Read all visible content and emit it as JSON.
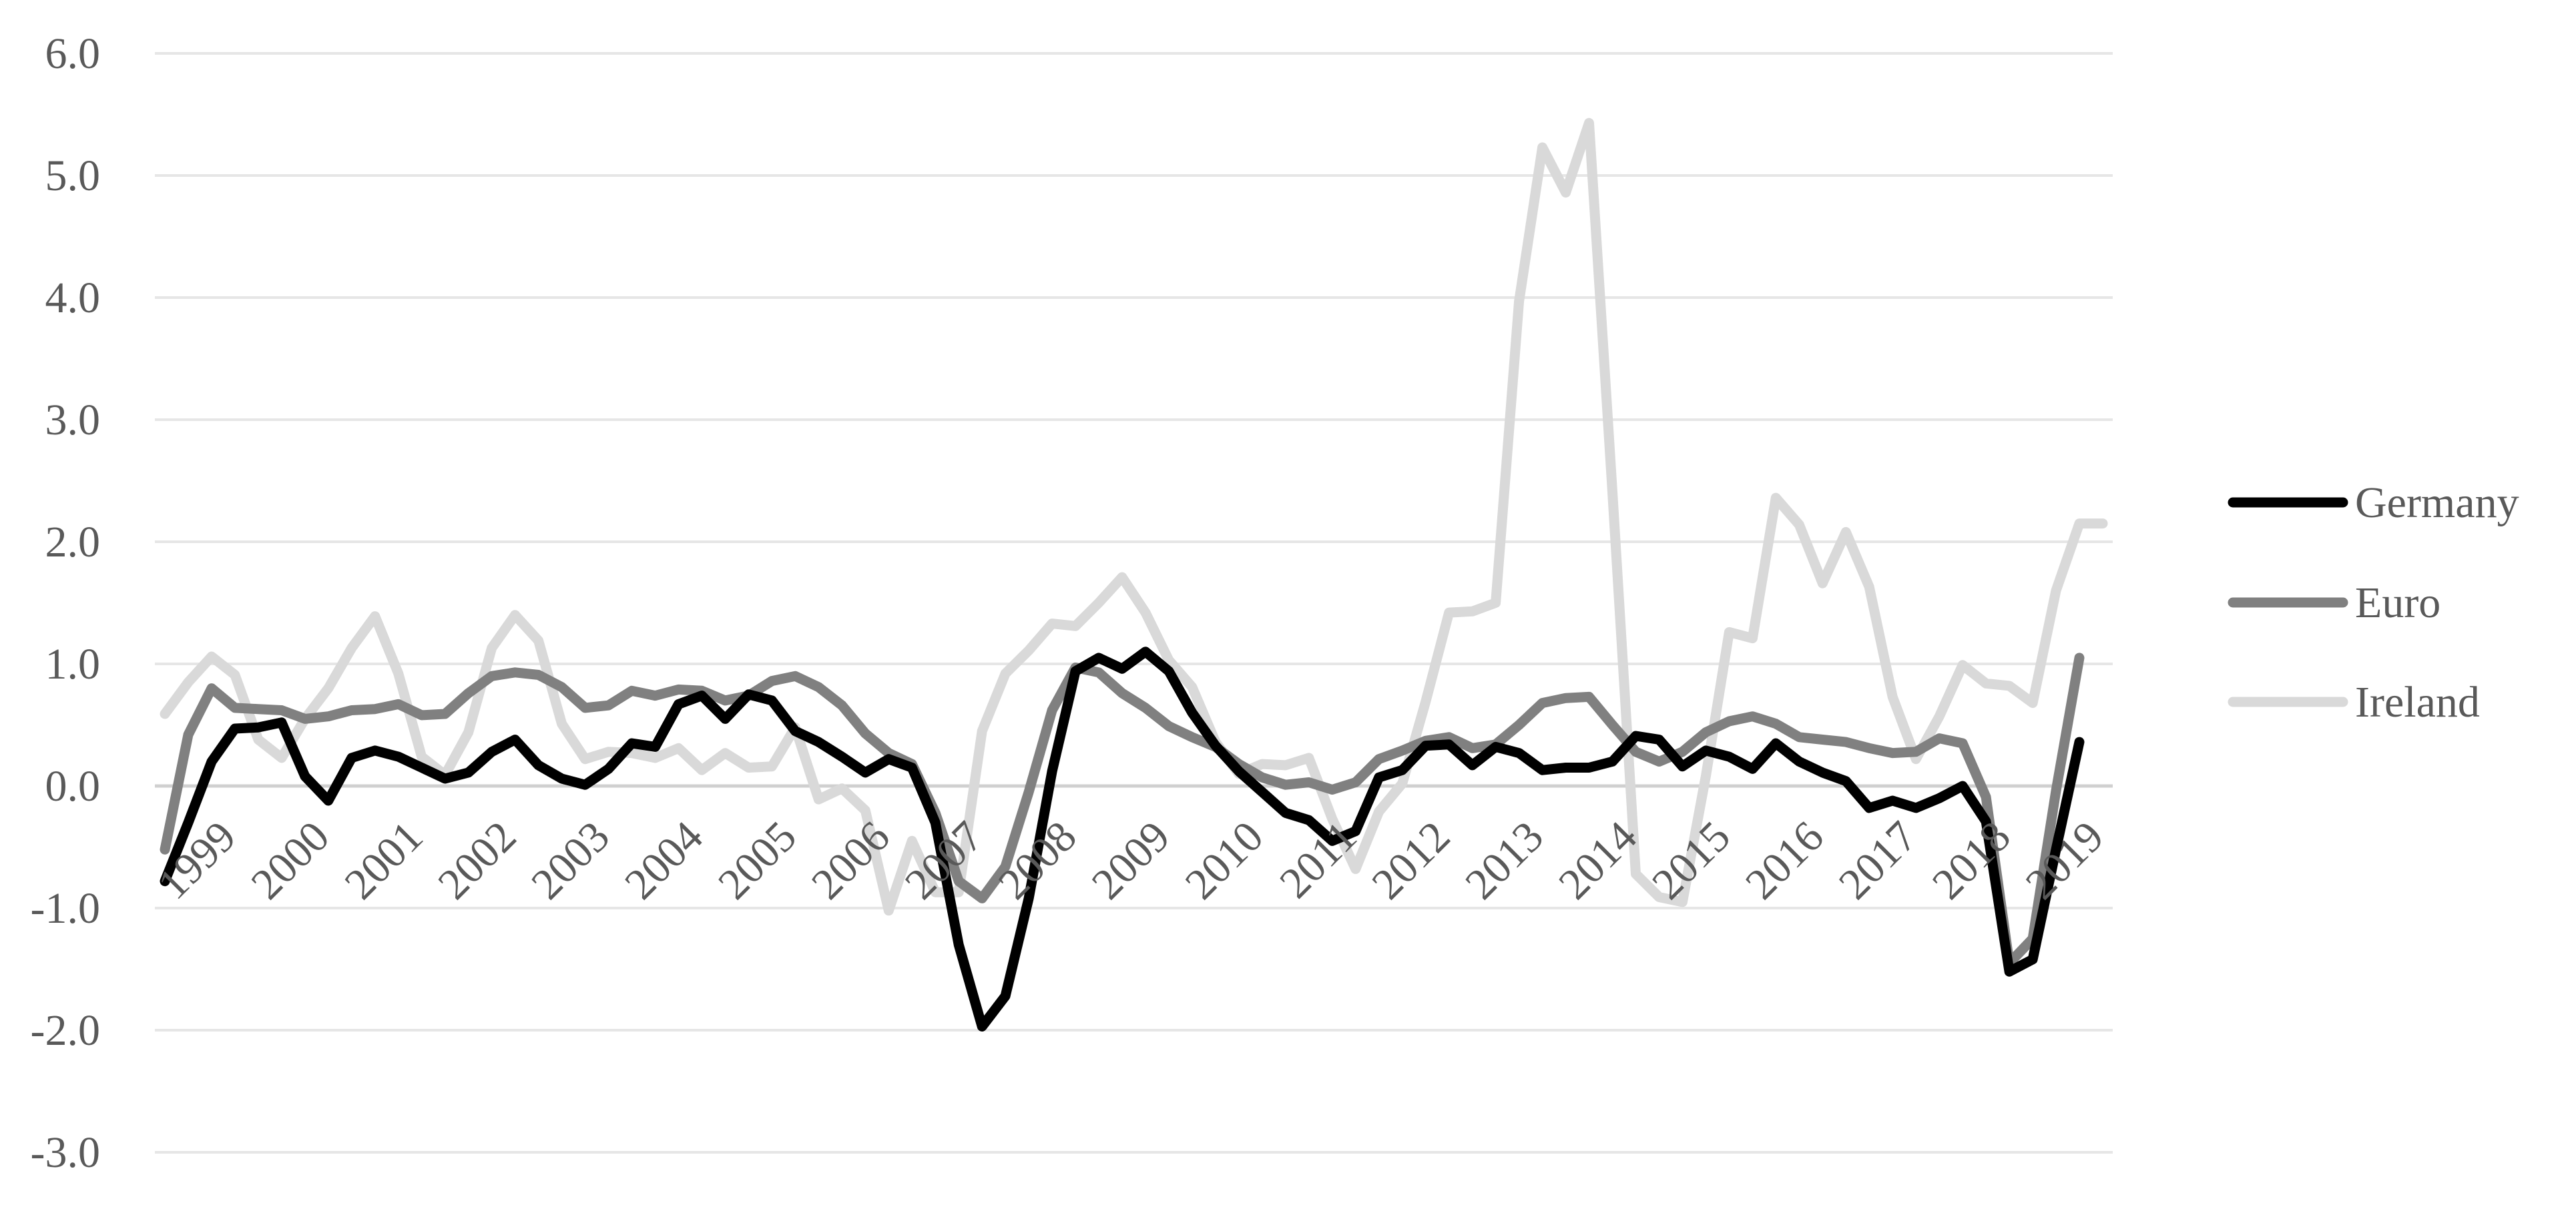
{
  "chart_data": {
    "type": "line",
    "title": "",
    "xlabel": "",
    "ylabel": "",
    "ylim": [
      -3.0,
      6.0
    ],
    "y_ticks": [
      "6.0",
      "5.0",
      "4.0",
      "3.0",
      "2.0",
      "1.0",
      "0.0",
      "-1.0",
      "-2.0",
      "-3.0"
    ],
    "x_tick_labels": [
      "1999",
      "2000",
      "2001",
      "2002",
      "2003",
      "2004",
      "2005",
      "2006",
      "2007",
      "2008",
      "2009",
      "2010",
      "2011",
      "2012",
      "2013",
      "2014",
      "2015",
      "2016",
      "2017",
      "2018",
      "2019"
    ],
    "x_start_year": 1999,
    "periods_per_year": 4,
    "grid": "horizontal",
    "legend_position": "right",
    "series": [
      {
        "name": "Germany",
        "color": "#000000",
        "values": [
          -0.78,
          -0.3,
          0.2,
          0.47,
          0.48,
          0.52,
          0.08,
          -0.12,
          0.23,
          0.29,
          0.24,
          0.15,
          0.06,
          0.11,
          0.28,
          0.38,
          0.17,
          0.06,
          0.01,
          0.14,
          0.35,
          0.32,
          0.67,
          0.74,
          0.55,
          0.75,
          0.7,
          0.45,
          0.36,
          0.24,
          0.11,
          0.22,
          0.15,
          -0.3,
          -1.3,
          -1.97,
          -1.72,
          -0.92,
          0.12,
          0.94,
          1.05,
          0.96,
          1.1,
          0.94,
          0.6,
          0.33,
          0.12,
          -0.05,
          -0.22,
          -0.28,
          -0.45,
          -0.37,
          0.07,
          0.13,
          0.33,
          0.34,
          0.17,
          0.32,
          0.27,
          0.13,
          0.15,
          0.15,
          0.2,
          0.41,
          0.38,
          0.16,
          0.29,
          0.24,
          0.14,
          0.35,
          0.2,
          0.11,
          0.04,
          -0.18,
          -0.12,
          -0.18,
          -0.1,
          0.0,
          -0.29,
          -1.52,
          -1.42,
          -0.52,
          0.36
        ]
      },
      {
        "name": "Euro",
        "color": "#808080",
        "values": [
          -0.52,
          0.42,
          0.8,
          0.64,
          0.63,
          0.62,
          0.55,
          0.57,
          0.62,
          0.63,
          0.67,
          0.58,
          0.59,
          0.76,
          0.9,
          0.93,
          0.91,
          0.81,
          0.64,
          0.66,
          0.78,
          0.74,
          0.79,
          0.78,
          0.7,
          0.74,
          0.86,
          0.9,
          0.81,
          0.66,
          0.43,
          0.27,
          0.18,
          -0.22,
          -0.78,
          -0.92,
          -0.66,
          -0.05,
          0.62,
          0.97,
          0.93,
          0.76,
          0.64,
          0.49,
          0.4,
          0.32,
          0.18,
          0.07,
          0.01,
          0.03,
          -0.03,
          0.03,
          0.22,
          0.29,
          0.37,
          0.4,
          0.31,
          0.34,
          0.5,
          0.68,
          0.72,
          0.73,
          0.5,
          0.28,
          0.2,
          0.28,
          0.44,
          0.53,
          0.57,
          0.51,
          0.4,
          0.38,
          0.36,
          0.31,
          0.27,
          0.28,
          0.39,
          0.35,
          -0.09,
          -1.45,
          -1.25,
          -0.04,
          1.05
        ]
      },
      {
        "name": "Ireland",
        "color": "#d9d9d9",
        "values": [
          0.59,
          0.85,
          1.06,
          0.91,
          0.38,
          0.23,
          0.55,
          0.8,
          1.13,
          1.39,
          0.92,
          0.24,
          0.09,
          0.44,
          1.13,
          1.4,
          1.19,
          0.51,
          0.22,
          0.28,
          0.27,
          0.23,
          0.31,
          0.13,
          0.27,
          0.15,
          0.16,
          0.48,
          -0.11,
          -0.02,
          -0.2,
          -1.02,
          -0.45,
          -0.87,
          -0.87,
          0.45,
          0.92,
          1.11,
          1.33,
          1.31,
          1.5,
          1.71,
          1.42,
          1.03,
          0.81,
          0.36,
          0.1,
          0.18,
          0.17,
          0.23,
          -0.27,
          -0.68,
          -0.21,
          0.02,
          0.69,
          1.42,
          1.43,
          1.5,
          3.97,
          5.23,
          4.86,
          5.43,
          2.41,
          -0.72,
          -0.91,
          -0.95,
          0.08,
          1.26,
          1.21,
          2.36,
          2.14,
          1.66,
          2.08,
          1.63,
          0.73,
          0.22,
          0.57,
          0.99,
          0.84,
          0.82,
          0.68,
          1.6,
          2.15,
          2.15
        ]
      }
    ]
  }
}
